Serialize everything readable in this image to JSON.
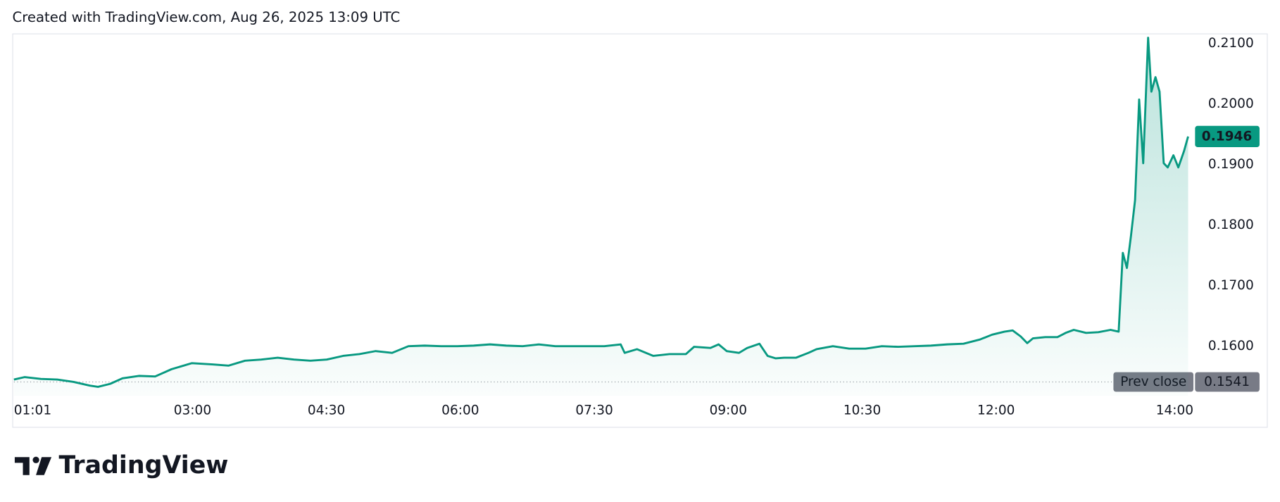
{
  "chart_data": {
    "type": "area",
    "title": "Created with TradingView.com, Aug 26, 2025 13:09 UTC",
    "brand": "TradingView",
    "color": "#089981",
    "x": [
      1.0,
      1.119,
      1.302,
      1.485,
      1.668,
      1.85,
      1.942,
      2.079,
      2.216,
      2.399,
      2.582,
      2.765,
      2.994,
      3.222,
      3.405,
      3.588,
      3.771,
      3.954,
      4.137,
      4.32,
      4.503,
      4.686,
      4.869,
      5.052,
      5.235,
      5.418,
      5.6,
      5.783,
      5.966,
      6.149,
      6.332,
      6.514,
      6.697,
      6.88,
      7.063,
      7.246,
      7.429,
      7.612,
      7.795,
      7.84,
      7.978,
      8.161,
      8.343,
      8.526,
      8.617,
      8.801,
      8.892,
      8.983,
      9.121,
      9.212,
      9.349,
      9.441,
      9.532,
      9.624,
      9.761,
      9.898,
      9.989,
      10.172,
      10.355,
      10.538,
      10.721,
      10.904,
      11.087,
      11.27,
      11.453,
      11.636,
      11.819,
      11.956,
      12.094,
      12.185,
      12.276,
      12.349,
      12.413,
      12.55,
      12.687,
      12.779,
      12.87,
      13.008,
      13.145,
      13.282,
      13.373,
      13.419,
      13.465,
      13.51,
      13.556,
      13.602,
      13.648,
      13.703,
      13.739,
      13.785,
      13.831,
      13.877,
      13.922,
      13.986,
      14.041,
      14.105,
      14.151
    ],
    "series": [
      {
        "values": [
          0.1545,
          0.1549,
          0.1546,
          0.1545,
          0.1541,
          0.1535,
          0.1533,
          0.1538,
          0.1547,
          0.1551,
          0.155,
          0.1562,
          0.1572,
          0.157,
          0.1568,
          0.1576,
          0.1578,
          0.1581,
          0.1578,
          0.1576,
          0.1578,
          0.1584,
          0.1587,
          0.1592,
          0.1589,
          0.16,
          0.1601,
          0.16,
          0.16,
          0.1601,
          0.1603,
          0.1601,
          0.16,
          0.1603,
          0.16,
          0.16,
          0.16,
          0.16,
          0.1603,
          0.1589,
          0.1595,
          0.1584,
          0.1587,
          0.1587,
          0.1599,
          0.1597,
          0.1603,
          0.1592,
          0.1589,
          0.1597,
          0.1604,
          0.1584,
          0.158,
          0.1581,
          0.1581,
          0.1589,
          0.1595,
          0.16,
          0.1596,
          0.1596,
          0.16,
          0.1599,
          0.16,
          0.1601,
          0.1603,
          0.1604,
          0.1611,
          0.1619,
          0.1624,
          0.1626,
          0.1616,
          0.1605,
          0.1613,
          0.1615,
          0.1615,
          0.1622,
          0.1627,
          0.1622,
          0.1623,
          0.1627,
          0.1624,
          0.1754,
          0.1729,
          0.1781,
          0.1841,
          0.2007,
          0.1902,
          0.2109,
          0.202,
          0.2044,
          0.202,
          0.1902,
          0.1895,
          0.1915,
          0.1895,
          0.1922,
          0.1946
        ]
      }
    ],
    "prev_close": 0.1541,
    "prev_close_label": "Prev close",
    "xlim": [
      1.0,
      14.21
    ],
    "xticks": [
      {
        "value": 1.017,
        "label": "01:01"
      },
      {
        "value": 3,
        "label": "03:00"
      },
      {
        "value": 4.5,
        "label": "04:30"
      },
      {
        "value": 6,
        "label": "06:00"
      },
      {
        "value": 7.5,
        "label": "07:30"
      },
      {
        "value": 9,
        "label": "09:00"
      },
      {
        "value": 10.5,
        "label": "10:30"
      },
      {
        "value": 12,
        "label": "12:00"
      },
      {
        "value": 14,
        "label": "14:00"
      }
    ],
    "ylim": [
      0.1518,
      0.2116
    ],
    "yticks": [
      {
        "value": 0.16,
        "label": "0.1600"
      },
      {
        "value": 0.17,
        "label": "0.1700"
      },
      {
        "value": 0.18,
        "label": "0.1800"
      },
      {
        "value": 0.19,
        "label": "0.1900"
      },
      {
        "value": 0.2,
        "label": "0.2000"
      },
      {
        "value": 0.21,
        "label": "0.2100"
      }
    ]
  }
}
